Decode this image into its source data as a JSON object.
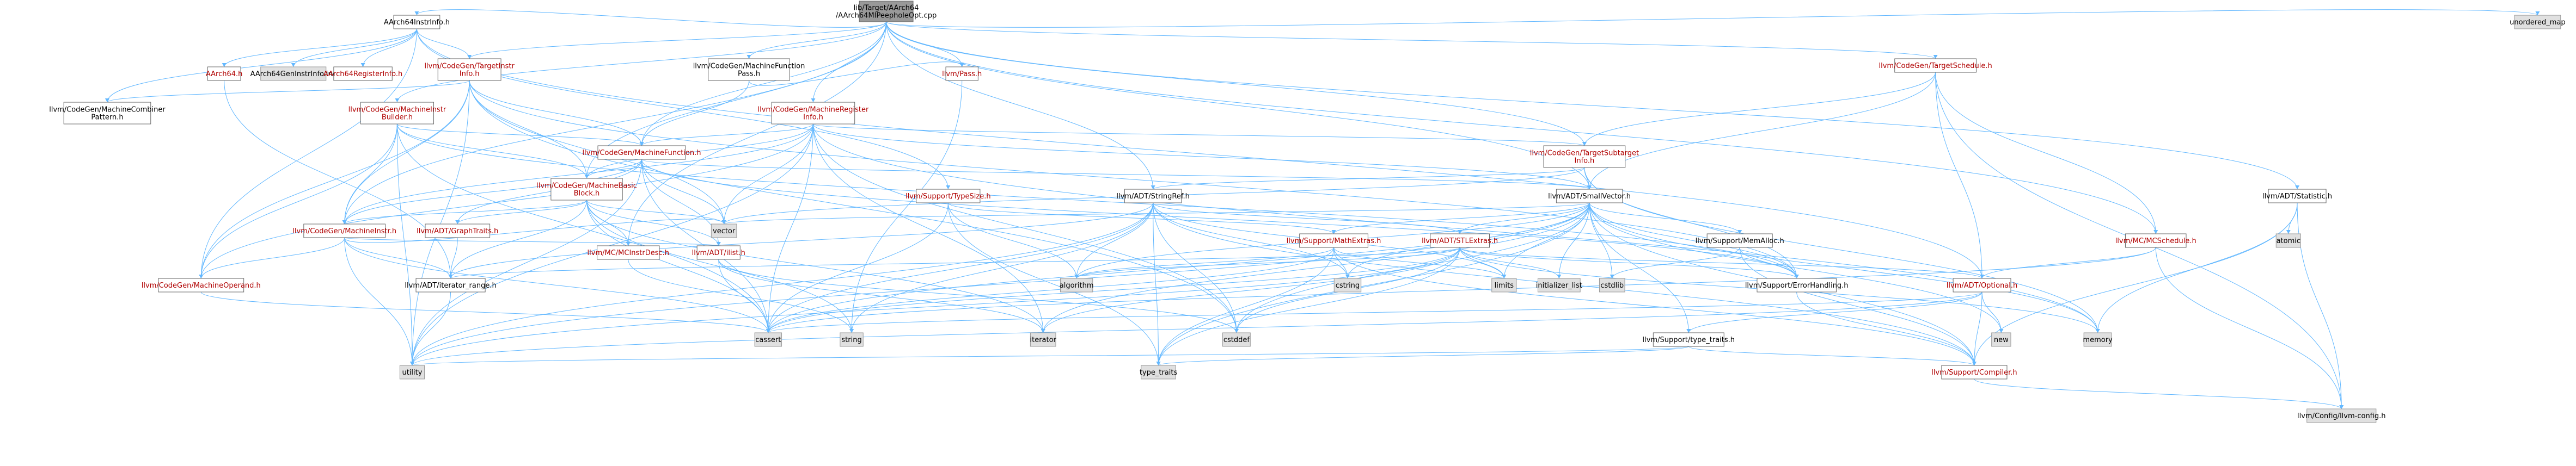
{
  "diagram": {
    "type": "include-dependency-graph",
    "colors": {
      "edge": "#63b8ff",
      "root_fill": "#999999",
      "node_fill": "#ffffff",
      "system_fill": "#e0e0e0",
      "red_text": "#b00000",
      "border": "#666666"
    },
    "nodes": [
      {
        "id": "root",
        "lines": [
          "lib/Target/AArch64",
          "/AArch64MIPeepholeOpt.cpp"
        ],
        "style": "root"
      },
      {
        "id": "AArch64InstrInfo",
        "lines": [
          "AArch64InstrInfo.h"
        ],
        "style": "normal"
      },
      {
        "id": "AArch64",
        "lines": [
          "AArch64.h"
        ],
        "style": "red"
      },
      {
        "id": "AArch64GenInstrInfo",
        "lines": [
          "AArch64GenInstrInfo.inc"
        ],
        "style": "system"
      },
      {
        "id": "AArch64RegisterInfo",
        "lines": [
          "AArch64RegisterInfo.h"
        ],
        "style": "red"
      },
      {
        "id": "TargetInstrInfo",
        "lines": [
          "llvm/CodeGen/TargetInstr",
          "Info.h"
        ],
        "style": "red"
      },
      {
        "id": "MachineCombinerPattern",
        "lines": [
          "llvm/CodeGen/MachineCombiner",
          "Pattern.h"
        ],
        "style": "normal"
      },
      {
        "id": "MachineInstrBuilder",
        "lines": [
          "llvm/CodeGen/MachineInstr",
          "Builder.h"
        ],
        "style": "red"
      },
      {
        "id": "MachineFunctionPass",
        "lines": [
          "llvm/CodeGen/MachineFunction",
          "Pass.h"
        ],
        "style": "normal"
      },
      {
        "id": "Pass",
        "lines": [
          "llvm/Pass.h"
        ],
        "style": "red"
      },
      {
        "id": "MachineRegisterInfo",
        "lines": [
          "llvm/CodeGen/MachineRegister",
          "Info.h"
        ],
        "style": "red"
      },
      {
        "id": "MachineFunction",
        "lines": [
          "llvm/CodeGen/MachineFunction.h"
        ],
        "style": "red"
      },
      {
        "id": "MachineBasicBlock",
        "lines": [
          "llvm/CodeGen/MachineBasic",
          "Block.h"
        ],
        "style": "red"
      },
      {
        "id": "MachineInstr",
        "lines": [
          "llvm/CodeGen/MachineInstr.h"
        ],
        "style": "red"
      },
      {
        "id": "MachineOperand",
        "lines": [
          "llvm/CodeGen/MachineOperand.h"
        ],
        "style": "red"
      },
      {
        "id": "GraphTraits",
        "lines": [
          "llvm/ADT/GraphTraits.h"
        ],
        "style": "red"
      },
      {
        "id": "iterator_range",
        "lines": [
          "llvm/ADT/iterator_range.h"
        ],
        "style": "normal"
      },
      {
        "id": "MCInstrDesc",
        "lines": [
          "llvm/MC/MCInstrDesc.h"
        ],
        "style": "red"
      },
      {
        "id": "ilist",
        "lines": [
          "llvm/ADT/ilist.h"
        ],
        "style": "red"
      },
      {
        "id": "TypeSize",
        "lines": [
          "llvm/Support/TypeSize.h"
        ],
        "style": "red"
      },
      {
        "id": "StringRef",
        "lines": [
          "llvm/ADT/StringRef.h"
        ],
        "style": "normal"
      },
      {
        "id": "SmallVector",
        "lines": [
          "llvm/ADT/SmallVector.h"
        ],
        "style": "normal"
      },
      {
        "id": "TargetSchedule",
        "lines": [
          "llvm/CodeGen/TargetSchedule.h"
        ],
        "style": "red"
      },
      {
        "id": "TargetSubtargetInfo",
        "lines": [
          "llvm/CodeGen/TargetSubtarget",
          "Info.h"
        ],
        "style": "red"
      },
      {
        "id": "Statistic",
        "lines": [
          "llvm/ADT/Statistic.h"
        ],
        "style": "normal"
      },
      {
        "id": "MCSchedule",
        "lines": [
          "llvm/MC/MCSchedule.h"
        ],
        "style": "red"
      },
      {
        "id": "MathExtras",
        "lines": [
          "llvm/Support/MathExtras.h"
        ],
        "style": "red"
      },
      {
        "id": "STLExtras",
        "lines": [
          "llvm/ADT/STLExtras.h"
        ],
        "style": "red"
      },
      {
        "id": "MemAlloc",
        "lines": [
          "llvm/Support/MemAlloc.h"
        ],
        "style": "normal"
      },
      {
        "id": "ErrorHandling",
        "lines": [
          "llvm/Support/ErrorHandling.h"
        ],
        "style": "normal"
      },
      {
        "id": "Optional",
        "lines": [
          "llvm/ADT/Optional.h"
        ],
        "style": "red"
      },
      {
        "id": "type_traits_llvm",
        "lines": [
          "llvm/Support/type_traits.h"
        ],
        "style": "normal"
      },
      {
        "id": "Compiler",
        "lines": [
          "llvm/Support/Compiler.h"
        ],
        "style": "red"
      },
      {
        "id": "llvm_config",
        "lines": [
          "llvm/Config/llvm-config.h"
        ],
        "style": "system"
      },
      {
        "id": "unordered_map",
        "lines": [
          "unordered_map"
        ],
        "style": "system"
      },
      {
        "id": "atomic",
        "lines": [
          "atomic"
        ],
        "style": "system"
      },
      {
        "id": "vector",
        "lines": [
          "vector"
        ],
        "style": "system"
      },
      {
        "id": "algorithm",
        "lines": [
          "algorithm"
        ],
        "style": "system"
      },
      {
        "id": "cstring",
        "lines": [
          "cstring"
        ],
        "style": "system"
      },
      {
        "id": "limits",
        "lines": [
          "limits"
        ],
        "style": "system"
      },
      {
        "id": "initializer_list",
        "lines": [
          "initializer_list"
        ],
        "style": "system"
      },
      {
        "id": "cstdlib",
        "lines": [
          "cstdlib"
        ],
        "style": "system"
      },
      {
        "id": "cassert",
        "lines": [
          "cassert"
        ],
        "style": "system"
      },
      {
        "id": "string",
        "lines": [
          "string"
        ],
        "style": "system"
      },
      {
        "id": "iterator",
        "lines": [
          "iterator"
        ],
        "style": "system"
      },
      {
        "id": "cstddef",
        "lines": [
          "cstddef"
        ],
        "style": "system"
      },
      {
        "id": "memory",
        "lines": [
          "memory"
        ],
        "style": "system"
      },
      {
        "id": "new",
        "lines": [
          "new"
        ],
        "style": "system"
      },
      {
        "id": "utility",
        "lines": [
          "utility"
        ],
        "style": "system"
      },
      {
        "id": "type_traits",
        "lines": [
          "type_traits"
        ],
        "style": "system"
      }
    ],
    "edges": [
      [
        "root",
        "AArch64InstrInfo"
      ],
      [
        "root",
        "MachineFunctionPass"
      ],
      [
        "root",
        "Pass"
      ],
      [
        "root",
        "MachineRegisterInfo"
      ],
      [
        "root",
        "TargetSchedule"
      ],
      [
        "root",
        "TargetSubtargetInfo"
      ],
      [
        "root",
        "Statistic"
      ],
      [
        "root",
        "unordered_map"
      ],
      [
        "root",
        "MachineInstrBuilder"
      ],
      [
        "root",
        "TargetInstrInfo"
      ],
      [
        "root",
        "MachineFunction"
      ],
      [
        "root",
        "MachineBasicBlock"
      ],
      [
        "root",
        "MachineInstr"
      ],
      [
        "root",
        "SmallVector"
      ],
      [
        "root",
        "StringRef"
      ],
      [
        "root",
        "MCSchedule"
      ],
      [
        "root",
        "MCInstrDesc"
      ],
      [
        "AArch64InstrInfo",
        "AArch64"
      ],
      [
        "AArch64InstrInfo",
        "AArch64GenInstrInfo"
      ],
      [
        "AArch64InstrInfo",
        "AArch64RegisterInfo"
      ],
      [
        "AArch64InstrInfo",
        "TargetInstrInfo"
      ],
      [
        "AArch64InstrInfo",
        "MachineCombinerPattern"
      ],
      [
        "AArch64InstrInfo",
        "TypeSize"
      ],
      [
        "AArch64InstrInfo",
        "Optional"
      ],
      [
        "AArch64InstrInfo",
        "MachineOperand"
      ],
      [
        "TargetInstrInfo",
        "MachineCombinerPattern"
      ],
      [
        "TargetInstrInfo",
        "MachineFunction"
      ],
      [
        "TargetInstrInfo",
        "MachineBasicBlock"
      ],
      [
        "TargetInstrInfo",
        "MachineInstr"
      ],
      [
        "TargetInstrInfo",
        "MachineOperand"
      ],
      [
        "TargetInstrInfo",
        "vector"
      ],
      [
        "TargetInstrInfo",
        "utility"
      ],
      [
        "TargetInstrInfo",
        "cstddef"
      ],
      [
        "TargetInstrInfo",
        "ErrorHandling"
      ],
      [
        "MachineInstrBuilder",
        "MachineFunction"
      ],
      [
        "MachineInstrBuilder",
        "MachineBasicBlock"
      ],
      [
        "MachineInstrBuilder",
        "MachineInstr"
      ],
      [
        "MachineInstrBuilder",
        "MachineOperand"
      ],
      [
        "MachineInstrBuilder",
        "ErrorHandling"
      ],
      [
        "MachineInstrBuilder",
        "cassert"
      ],
      [
        "MachineInstrBuilder",
        "utility"
      ],
      [
        "MachineFunctionPass",
        "MachineFunction"
      ],
      [
        "MachineFunctionPass",
        "Pass"
      ],
      [
        "Pass",
        "string"
      ],
      [
        "MachineRegisterInfo",
        "MachineFunction"
      ],
      [
        "MachineRegisterInfo",
        "MachineBasicBlock"
      ],
      [
        "MachineRegisterInfo",
        "MachineInstr"
      ],
      [
        "MachineRegisterInfo",
        "MachineOperand"
      ],
      [
        "MachineRegisterInfo",
        "TargetSubtargetInfo"
      ],
      [
        "MachineRegisterInfo",
        "vector"
      ],
      [
        "MachineRegisterInfo",
        "memory"
      ],
      [
        "MachineRegisterInfo",
        "iterator"
      ],
      [
        "MachineRegisterInfo",
        "cstddef"
      ],
      [
        "MachineRegisterInfo",
        "cassert"
      ],
      [
        "MachineRegisterInfo",
        "SmallVector"
      ],
      [
        "MachineRegisterInfo",
        "utility"
      ],
      [
        "MachineFunction",
        "MachineBasicBlock"
      ],
      [
        "MachineFunction",
        "GraphTraits"
      ],
      [
        "MachineFunction",
        "ilist"
      ],
      [
        "MachineFunction",
        "SmallVector"
      ],
      [
        "MachineFunction",
        "ErrorHandling"
      ],
      [
        "MachineFunction",
        "cassert"
      ],
      [
        "MachineFunction",
        "vector"
      ],
      [
        "MachineFunction",
        "utility"
      ],
      [
        "MachineFunction",
        "cstdint"
      ],
      [
        "MachineFunction",
        "MachineInstr"
      ],
      [
        "MachineBasicBlock",
        "MachineInstr"
      ],
      [
        "MachineBasicBlock",
        "GraphTraits"
      ],
      [
        "MachineBasicBlock",
        "ilist"
      ],
      [
        "MachineBasicBlock",
        "iterator_range"
      ],
      [
        "MachineBasicBlock",
        "MCInstrDesc"
      ],
      [
        "MachineBasicBlock",
        "cassert"
      ],
      [
        "MachineBasicBlock",
        "string"
      ],
      [
        "MachineBasicBlock",
        "vector"
      ],
      [
        "MachineBasicBlock",
        "iterator"
      ],
      [
        "MachineInstr",
        "MachineOperand"
      ],
      [
        "MachineInstr",
        "iterator_range"
      ],
      [
        "MachineInstr",
        "ilist"
      ],
      [
        "MachineInstr",
        "cassert"
      ],
      [
        "MachineInstr",
        "cstdint"
      ],
      [
        "MachineInstr",
        "utility"
      ],
      [
        "MachineInstr",
        "vector"
      ],
      [
        "MachineOperand",
        "cassert"
      ],
      [
        "GraphTraits",
        "iterator_range"
      ],
      [
        "iterator_range",
        "utility"
      ],
      [
        "ilist",
        "iterator"
      ],
      [
        "ilist",
        "cassert"
      ],
      [
        "ilist",
        "cstddef"
      ],
      [
        "TypeSize",
        "MathExtras"
      ],
      [
        "TypeSize",
        "algorithm"
      ],
      [
        "TypeSize",
        "type_traits"
      ],
      [
        "TypeSize",
        "cassert"
      ],
      [
        "StringRef",
        "STLExtras"
      ],
      [
        "StringRef",
        "iterator_range"
      ],
      [
        "StringRef",
        "Compiler"
      ],
      [
        "StringRef",
        "algorithm"
      ],
      [
        "StringRef",
        "cassert"
      ],
      [
        "StringRef",
        "cstddef"
      ],
      [
        "StringRef",
        "cstring"
      ],
      [
        "StringRef",
        "limits"
      ],
      [
        "StringRef",
        "string"
      ],
      [
        "StringRef",
        "type_traits"
      ],
      [
        "StringRef",
        "utility"
      ],
      [
        "SmallVector",
        "Compiler"
      ],
      [
        "SmallVector",
        "MemAlloc"
      ],
      [
        "SmallVector",
        "type_traits_llvm"
      ],
      [
        "SmallVector",
        "algorithm"
      ],
      [
        "SmallVector",
        "cassert"
      ],
      [
        "SmallVector",
        "cstddef"
      ],
      [
        "SmallVector",
        "cstdlib"
      ],
      [
        "SmallVector",
        "cstring"
      ],
      [
        "SmallVector",
        "initializer_list"
      ],
      [
        "SmallVector",
        "iterator"
      ],
      [
        "SmallVector",
        "limits"
      ],
      [
        "SmallVector",
        "memory"
      ],
      [
        "SmallVector",
        "new"
      ],
      [
        "SmallVector",
        "type_traits"
      ],
      [
        "SmallVector",
        "utility"
      ],
      [
        "SmallVector",
        "ErrorHandling"
      ],
      [
        "SmallVector",
        "MathExtras"
      ],
      [
        "SmallVector",
        "STLExtras"
      ],
      [
        "SmallVector",
        "vector"
      ],
      [
        "TargetSchedule",
        "TargetSubtargetInfo"
      ],
      [
        "TargetSchedule",
        "MCSchedule"
      ],
      [
        "TargetSchedule",
        "SmallVector"
      ],
      [
        "TargetSchedule",
        "Optional"
      ],
      [
        "TargetSchedule",
        "llvm_config"
      ],
      [
        "TargetSubtargetInfo",
        "SmallVector"
      ],
      [
        "TargetSubtargetInfo",
        "StringRef"
      ],
      [
        "TargetSubtargetInfo",
        "memory"
      ],
      [
        "TargetSubtargetInfo",
        "vector"
      ],
      [
        "TargetSubtargetInfo",
        "ErrorHandling"
      ],
      [
        "Statistic",
        "atomic"
      ],
      [
        "Statistic",
        "memory"
      ],
      [
        "Statistic",
        "Compiler"
      ],
      [
        "Statistic",
        "llvm_config"
      ],
      [
        "MCSchedule",
        "Optional"
      ],
      [
        "MCSchedule",
        "llvm_config"
      ],
      [
        "MCSchedule",
        "cassert"
      ],
      [
        "MathExtras",
        "Compiler"
      ],
      [
        "MathExtras",
        "algorithm"
      ],
      [
        "MathExtras",
        "cassert"
      ],
      [
        "MathExtras",
        "cstring"
      ],
      [
        "MathExtras",
        "limits"
      ],
      [
        "MathExtras",
        "type_traits"
      ],
      [
        "STLExtras",
        "Optional"
      ],
      [
        "STLExtras",
        "iterator_range"
      ],
      [
        "STLExtras",
        "ErrorHandling"
      ],
      [
        "STLExtras",
        "algorithm"
      ],
      [
        "STLExtras",
        "cassert"
      ],
      [
        "STLExtras",
        "cstddef"
      ],
      [
        "STLExtras",
        "initializer_list"
      ],
      [
        "STLExtras",
        "iterator"
      ],
      [
        "STLExtras",
        "limits"
      ],
      [
        "STLExtras",
        "memory"
      ],
      [
        "STLExtras",
        "type_traits"
      ],
      [
        "STLExtras",
        "utility"
      ],
      [
        "MemAlloc",
        "Compiler"
      ],
      [
        "MemAlloc",
        "ErrorHandling"
      ],
      [
        "MemAlloc",
        "cstdlib"
      ],
      [
        "ErrorHandling",
        "Compiler"
      ],
      [
        "Optional",
        "Compiler"
      ],
      [
        "Optional",
        "type_traits_llvm"
      ],
      [
        "Optional",
        "cassert"
      ],
      [
        "Optional",
        "new"
      ],
      [
        "Optional",
        "utility"
      ],
      [
        "type_traits_llvm",
        "Compiler"
      ],
      [
        "type_traits_llvm",
        "type_traits"
      ],
      [
        "type_traits_llvm",
        "utility"
      ],
      [
        "Compiler",
        "llvm_config"
      ],
      [
        "MCInstrDesc",
        "string"
      ],
      [
        "AArch64",
        "iterator_range"
      ]
    ]
  }
}
